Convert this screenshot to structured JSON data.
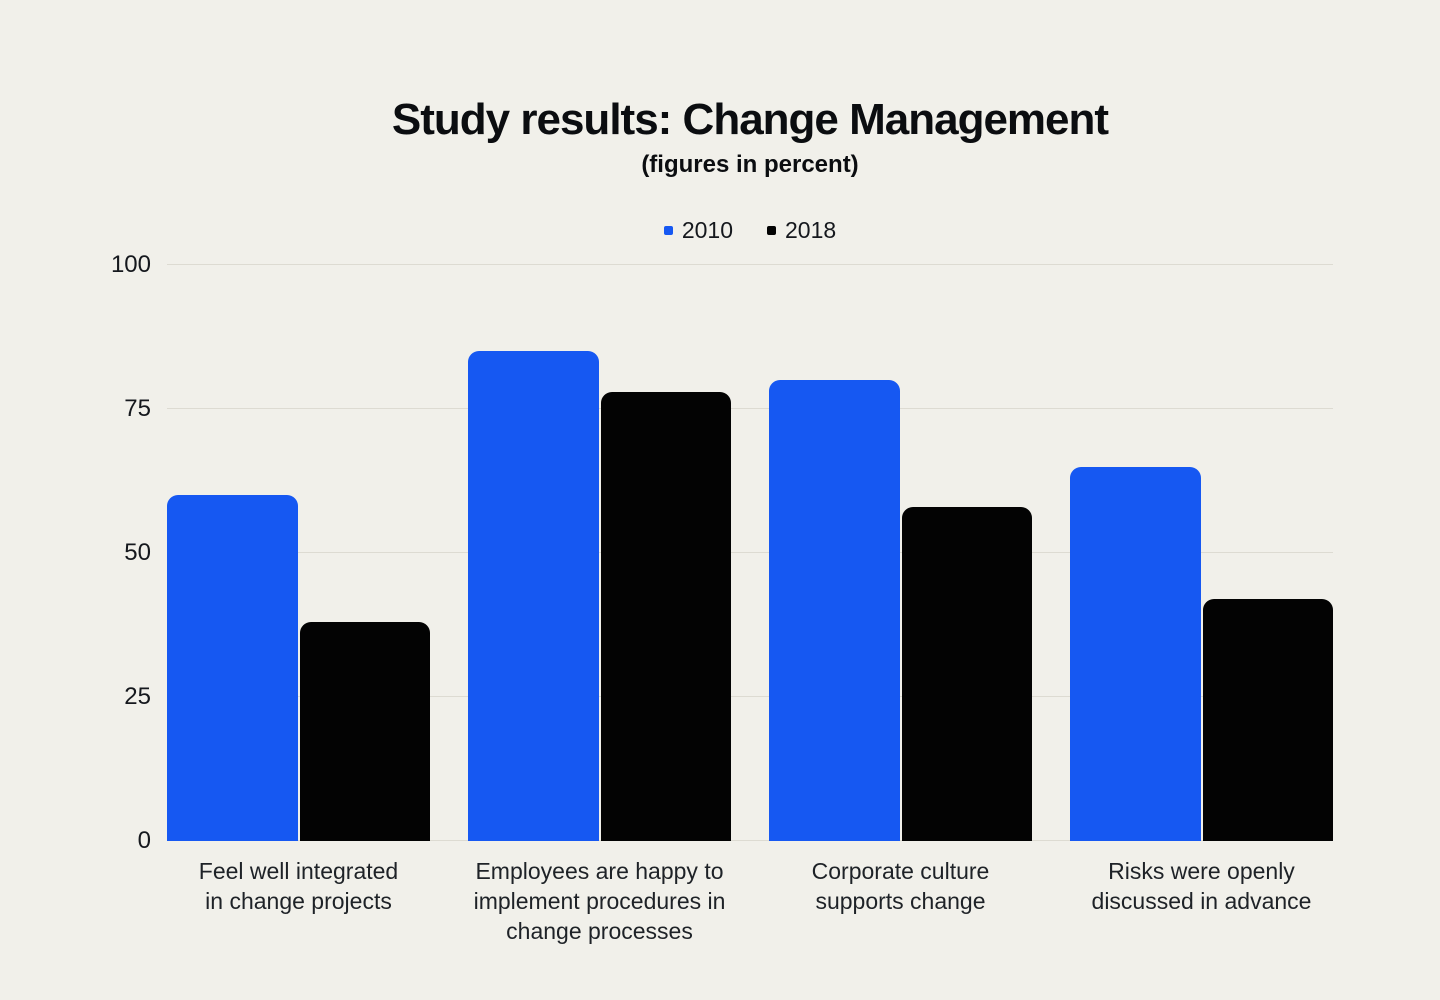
{
  "chart_data": {
    "type": "bar",
    "title": "Study results: Change Management",
    "subtitle": "(figures in percent)",
    "categories": [
      "Feel well integrated in change projects",
      "Employees are happy to implement procedures in change processes",
      "Corporate culture supports change",
      "Risks were openly discussed in advance"
    ],
    "category_lines": [
      [
        "Feel well integrated",
        "in change projects"
      ],
      [
        "Employees are happy to",
        "implement procedures in",
        "change processes"
      ],
      [
        "Corporate culture",
        "supports change"
      ],
      [
        "Risks were openly",
        "discussed in advance"
      ]
    ],
    "series": [
      {
        "name": "2010",
        "color": "#1658F2",
        "values": [
          60,
          85,
          80,
          65
        ]
      },
      {
        "name": "2018",
        "color": "#030303",
        "values": [
          38,
          78,
          58,
          42
        ]
      }
    ],
    "xlabel": "",
    "ylabel": "",
    "ylim": [
      0,
      100
    ],
    "yticks": [
      0,
      25,
      50,
      75,
      100
    ],
    "grid": true,
    "legend_position": "top-center"
  },
  "colors": {
    "background": "#F1F0EA",
    "gridline": "#DDDBD2",
    "title_text": "#0B0D10",
    "label_text": "#1E2227",
    "tick_text": "#15181D"
  }
}
